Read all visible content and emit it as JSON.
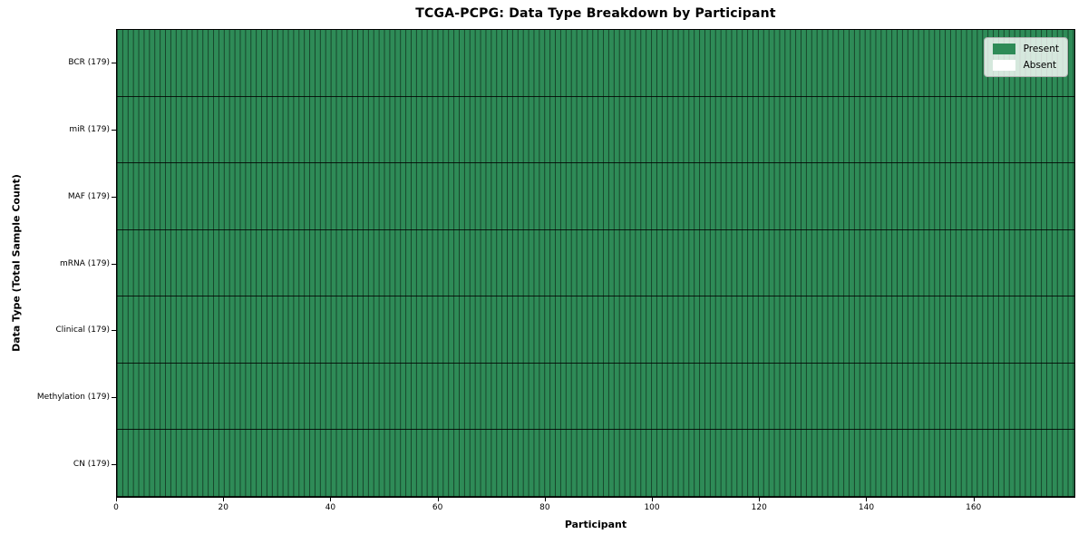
{
  "figure": {
    "title": "TCGA-PCPG: Data Type Breakdown by Participant",
    "xlabel": "Participant",
    "ylabel": "Data Type (Total Sample Count)"
  },
  "legend": {
    "items": [
      {
        "label": "Present",
        "color": "#2e8b57"
      },
      {
        "label": "Absent",
        "color": "#ffffff"
      }
    ],
    "position": "upper right"
  },
  "chart_data": {
    "type": "heatmap",
    "title": "TCGA-PCPG: Data Type Breakdown by Participant",
    "xlabel": "Participant",
    "ylabel": "Data Type (Total Sample Count)",
    "participants": 179,
    "xlim": [
      0,
      179
    ],
    "x_ticks": [
      0,
      20,
      40,
      60,
      80,
      100,
      120,
      140,
      160
    ],
    "categories": [
      "BCR (179)",
      "miR (179)",
      "MAF (179)",
      "mRNA (179)",
      "Clinical (179)",
      "Methylation (179)",
      "CN (179)"
    ],
    "series": [
      {
        "name": "BCR",
        "total_samples": 179,
        "present_count": 179,
        "absent_count": 0
      },
      {
        "name": "miR",
        "total_samples": 179,
        "present_count": 179,
        "absent_count": 0
      },
      {
        "name": "MAF",
        "total_samples": 179,
        "present_count": 179,
        "absent_count": 0
      },
      {
        "name": "mRNA",
        "total_samples": 179,
        "present_count": 179,
        "absent_count": 0
      },
      {
        "name": "Clinical",
        "total_samples": 179,
        "present_count": 179,
        "absent_count": 0
      },
      {
        "name": "Methylation",
        "total_samples": 179,
        "present_count": 179,
        "absent_count": 0
      },
      {
        "name": "CN",
        "total_samples": 179,
        "present_count": 179,
        "absent_count": 0
      }
    ],
    "cell_states": "every cell Present for all 7 data types across all 179 participants",
    "grid": "vertical divider per participant column, horizontal divider per data-type row, black outer spine",
    "legend_position": "upper right",
    "colors": {
      "present": "#2e8b57",
      "absent": "#ffffff",
      "cell_divider": "rgba(0,0,0,0.5)",
      "row_divider": "rgba(0,0,0,0.82)",
      "spine": "#000000",
      "legend_border": "#b3b3b3",
      "legend_background": "rgba(255,255,255,0.8)"
    }
  }
}
